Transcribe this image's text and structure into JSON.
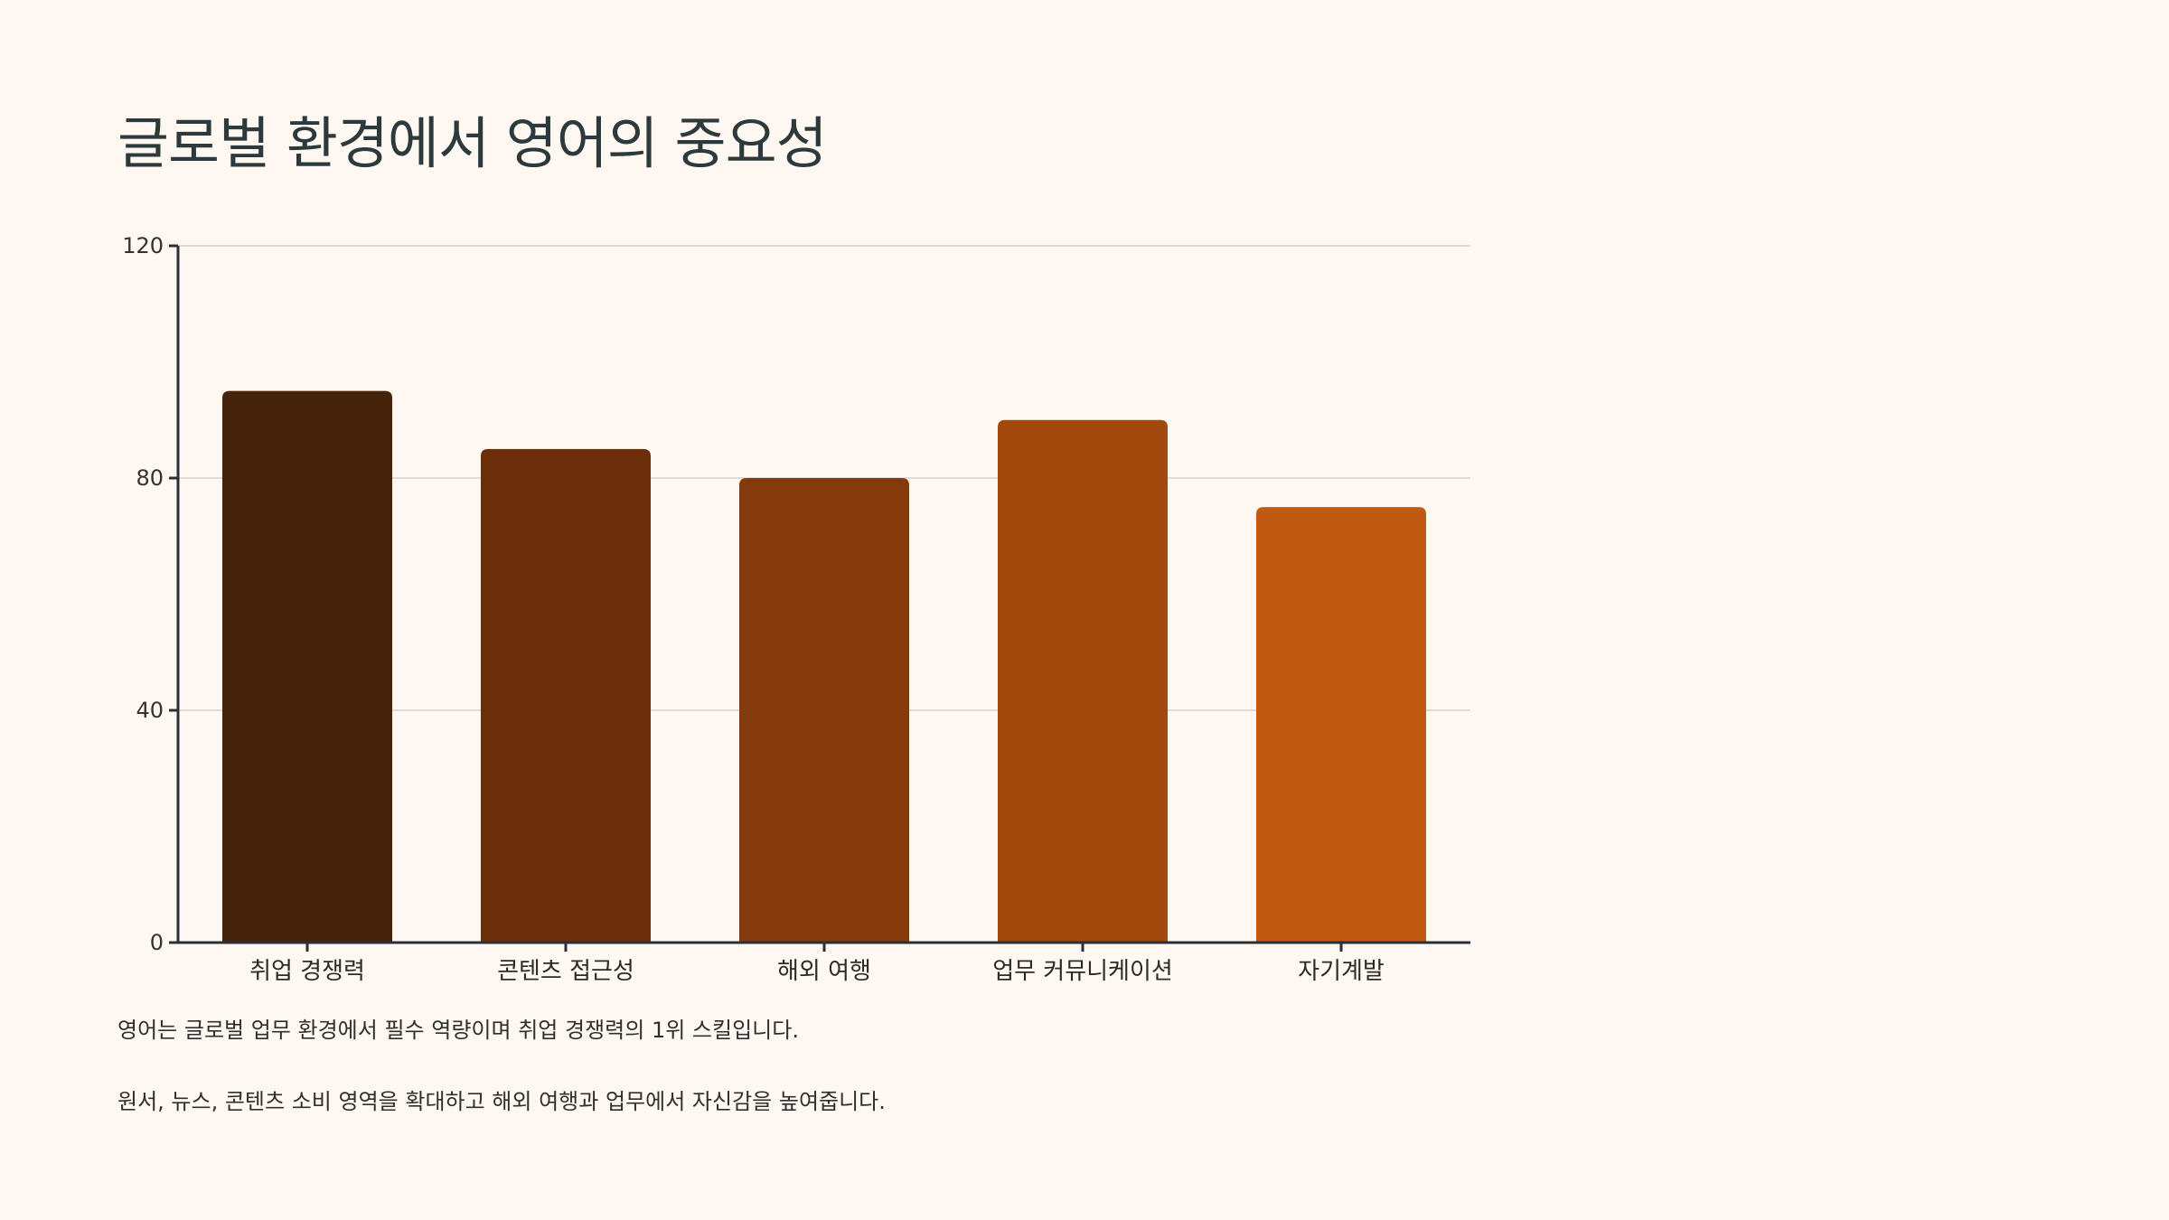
{
  "title": "글로벌 환경에서 영어의 중요성",
  "chart_data": {
    "type": "bar",
    "categories": [
      "취업 경쟁력",
      "콘텐츠 접근성",
      "해외 여행",
      "업무 커뮤니케이션",
      "자기계발"
    ],
    "values": [
      95,
      85,
      80,
      90,
      75
    ],
    "ylim": [
      0,
      120
    ],
    "yticks": [
      0,
      40,
      80,
      120
    ],
    "grid": true,
    "colors": [
      "#45220a",
      "#6a2f0a",
      "#833b0b",
      "#a2490e",
      "#c05a12"
    ]
  },
  "notes": [
    "영어는 글로벌 업무 환경에서 필수 역량이며 취업 경쟁력의 1위 스킬입니다.",
    "원서, 뉴스, 콘텐츠 소비 영역을 확대하고 해외 여행과 업무에서 자신감을 높여줍니다."
  ]
}
